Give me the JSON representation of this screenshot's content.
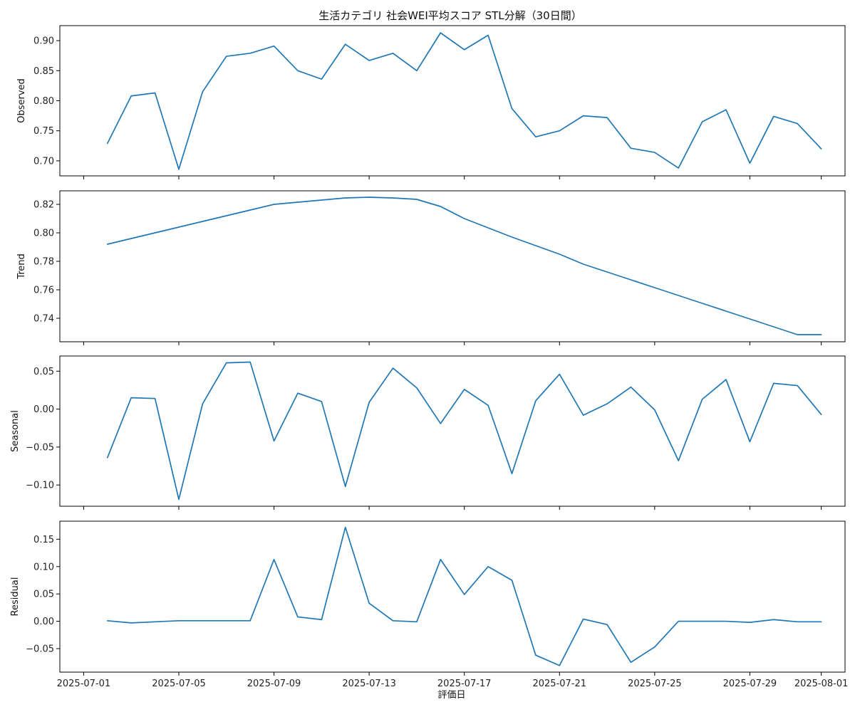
{
  "chart_data": {
    "type": "line",
    "title": "生活カテゴリ 社会WEI平均スコア STL分解（30日間）",
    "xlabel": "評価日",
    "line_color": "#1f77b4",
    "x": [
      "2025-07-02",
      "2025-07-03",
      "2025-07-04",
      "2025-07-05",
      "2025-07-06",
      "2025-07-07",
      "2025-07-08",
      "2025-07-09",
      "2025-07-10",
      "2025-07-11",
      "2025-07-12",
      "2025-07-13",
      "2025-07-14",
      "2025-07-15",
      "2025-07-16",
      "2025-07-17",
      "2025-07-18",
      "2025-07-19",
      "2025-07-20",
      "2025-07-21",
      "2025-07-22",
      "2025-07-23",
      "2025-07-24",
      "2025-07-25",
      "2025-07-26",
      "2025-07-27",
      "2025-07-28",
      "2025-07-29",
      "2025-07-30",
      "2025-07-31",
      "2025-08-01"
    ],
    "xticks": [
      "2025-07-01",
      "2025-07-05",
      "2025-07-09",
      "2025-07-13",
      "2025-07-17",
      "2025-07-21",
      "2025-07-25",
      "2025-07-29",
      "2025-08-01"
    ],
    "xlim": [
      "2025-06-30",
      "2025-08-02"
    ],
    "panels": [
      {
        "ylabel": "Observed",
        "ylim": [
          0.675,
          0.925
        ],
        "yticks": [
          0.7,
          0.75,
          0.8,
          0.85,
          0.9
        ],
        "ytick_labels": [
          "0.70",
          "0.75",
          "0.80",
          "0.85",
          "0.90"
        ],
        "values": [
          0.729,
          0.808,
          0.813,
          0.686,
          0.815,
          0.874,
          0.879,
          0.891,
          0.85,
          0.836,
          0.894,
          0.867,
          0.879,
          0.85,
          0.913,
          0.885,
          0.909,
          0.787,
          0.74,
          0.75,
          0.775,
          0.772,
          0.721,
          0.714,
          0.688,
          0.765,
          0.785,
          0.696,
          0.774,
          0.762,
          0.72
        ]
      },
      {
        "ylabel": "Trend",
        "ylim": [
          0.7235,
          0.8295
        ],
        "yticks": [
          0.74,
          0.76,
          0.78,
          0.8,
          0.82
        ],
        "ytick_labels": [
          "0.74",
          "0.76",
          "0.78",
          "0.80",
          "0.82"
        ],
        "values": [
          0.792,
          0.796,
          0.8,
          0.804,
          0.808,
          0.812,
          0.816,
          0.82,
          0.8215,
          0.823,
          0.8245,
          0.825,
          0.8245,
          0.8235,
          0.8185,
          0.81,
          0.8035,
          0.797,
          0.791,
          0.785,
          0.778,
          0.7725,
          0.767,
          0.7615,
          0.756,
          0.7505,
          0.745,
          0.7395,
          0.734,
          0.7285,
          0.7285
        ]
      },
      {
        "ylabel": "Seasonal",
        "ylim": [
          -0.128,
          0.07
        ],
        "yticks": [
          -0.1,
          -0.05,
          0.0,
          0.05
        ],
        "ytick_labels": [
          "−0.10",
          "−0.05",
          "0.00",
          "0.05"
        ],
        "values": [
          -0.064,
          0.015,
          0.014,
          -0.119,
          0.007,
          0.061,
          0.062,
          -0.042,
          0.021,
          0.01,
          -0.102,
          0.009,
          0.054,
          0.028,
          -0.019,
          0.026,
          0.005,
          -0.085,
          0.011,
          0.046,
          -0.008,
          0.007,
          0.029,
          -0.001,
          -0.068,
          0.013,
          0.039,
          -0.043,
          0.034,
          0.031,
          -0.007
        ]
      },
      {
        "ylabel": "Residual",
        "ylim": [
          -0.093,
          0.183
        ],
        "yticks": [
          -0.05,
          0.0,
          0.05,
          0.1,
          0.15
        ],
        "ytick_labels": [
          "−0.05",
          "0.00",
          "0.05",
          "0.10",
          "0.15"
        ],
        "values": [
          0.001,
          -0.003,
          -0.001,
          0.001,
          0.001,
          0.001,
          0.001,
          0.113,
          0.008,
          0.003,
          0.172,
          0.033,
          0.001,
          -0.001,
          0.113,
          0.049,
          0.1,
          0.075,
          -0.062,
          -0.081,
          0.004,
          -0.006,
          -0.075,
          -0.047,
          0.0,
          0.0,
          0.0,
          -0.002,
          0.003,
          -0.001,
          -0.001
        ]
      }
    ]
  }
}
